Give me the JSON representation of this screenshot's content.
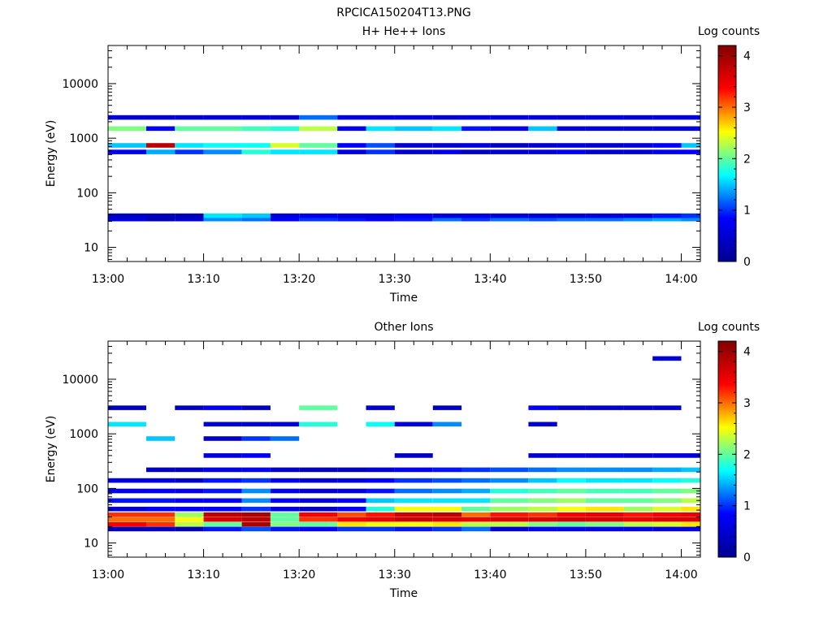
{
  "page_title": "RPCICA150204T13.PNG",
  "colormap": {
    "stops": [
      "#00008f",
      "#0000ff",
      "#00ffff",
      "#ffff00",
      "#ff0000",
      "#800000"
    ],
    "range": [
      0,
      4.2
    ]
  },
  "chart_data": [
    {
      "type": "heatmap",
      "title": "H+ He++ Ions",
      "xlabel": "Time",
      "ylabel": "Energy (eV)",
      "colorbar_label": "Log counts",
      "colorbar_ticks": [
        "0",
        "1",
        "2",
        "3",
        "4"
      ],
      "x_ticks": [
        "13:00",
        "13:10",
        "13:20",
        "13:30",
        "13:40",
        "13:50",
        "14:00"
      ],
      "y_ticks": [
        "10",
        "100",
        "1000",
        "10000"
      ],
      "xlim": [
        "13:00",
        "14:02"
      ],
      "ylim_eV": [
        5.5,
        50000
      ],
      "y_scale": "log",
      "time_bins": [
        "13:00",
        "13:04",
        "13:07",
        "13:10",
        "13:14",
        "13:17",
        "13:20",
        "13:24",
        "13:27",
        "13:30",
        "13:34",
        "13:37",
        "13:40",
        "13:44",
        "13:47",
        "13:50",
        "13:54",
        "13:57",
        "14:00"
      ],
      "cells": [
        {
          "energy_eV": 33,
          "values": [
            0.6,
            0.3,
            0.5,
            1.3,
            1.2,
            0.8,
            1.0,
            0.9,
            0.8,
            0.9,
            1.2,
            1.0,
            1.2,
            1.1,
            1.2,
            1.2,
            1.3,
            1.4,
            1.3
          ]
        },
        {
          "energy_eV": 38,
          "values": [
            0.4,
            0.3,
            0.3,
            1.6,
            1.5,
            0.6,
            0.7,
            0.6,
            0.5,
            0.7,
            0.6,
            0.6,
            0.6,
            0.5,
            0.5,
            0.6,
            0.6,
            0.9,
            1.0
          ]
        },
        {
          "energy_eV": 560,
          "values": [
            0.7,
            1.4,
            1.0,
            1.3,
            1.8,
            1.6,
            1.6,
            0.6,
            1.0,
            0.5,
            0.7,
            0.4,
            0.5,
            0.6,
            0.7,
            0.5,
            0.5,
            0.7,
            0.8
          ]
        },
        {
          "energy_eV": 740,
          "values": [
            1.5,
            3.8,
            1.6,
            1.7,
            1.7,
            2.4,
            2.0,
            0.8,
            1.1,
            0.5,
            0.5,
            0.6,
            0.4,
            0.5,
            0.6,
            0.5,
            0.6,
            0.8,
            1.5
          ]
        },
        {
          "energy_eV": 1500,
          "values": [
            2.1,
            0.8,
            2.0,
            2.0,
            1.9,
            1.8,
            2.3,
            0.7,
            1.6,
            1.5,
            1.6,
            0.9,
            0.7,
            1.5,
            0.6,
            0.6,
            0.6,
            0.6,
            0.6
          ]
        },
        {
          "energy_eV": 2400,
          "values": [
            0.5,
            0.5,
            0.5,
            0.6,
            0.6,
            0.5,
            1.2,
            0.6,
            0.6,
            0.6,
            0.5,
            0.6,
            0.6,
            0.6,
            0.5,
            0.6,
            0.5,
            0.6,
            0.6
          ]
        }
      ]
    },
    {
      "type": "heatmap",
      "title": "Other Ions",
      "xlabel": "Time",
      "ylabel": "Energy (eV)",
      "colorbar_label": "Log counts",
      "colorbar_ticks": [
        "0",
        "1",
        "2",
        "3",
        "4"
      ],
      "x_ticks": [
        "13:00",
        "13:10",
        "13:20",
        "13:30",
        "13:40",
        "13:50",
        "14:00"
      ],
      "y_ticks": [
        "10",
        "100",
        "1000",
        "10000"
      ],
      "xlim": [
        "13:00",
        "14:02"
      ],
      "ylim_eV": [
        5.5,
        50000
      ],
      "y_scale": "log",
      "time_bins": [
        "13:00",
        "13:04",
        "13:07",
        "13:10",
        "13:14",
        "13:17",
        "13:20",
        "13:24",
        "13:27",
        "13:30",
        "13:34",
        "13:37",
        "13:40",
        "13:44",
        "13:47",
        "13:50",
        "13:54",
        "13:57",
        "14:00"
      ],
      "cells": [
        {
          "energy_eV": 18,
          "values": [
            0.3,
            0.4,
            0.3,
            0.9,
            1.1,
            0.9,
            0.8,
            1.0,
            1.0,
            0.9,
            1.0,
            1.2,
            0.5,
            0.8,
            0.7,
            0.7,
            0.7,
            0.6,
            0.6
          ]
        },
        {
          "energy_eV": 22,
          "values": [
            3.4,
            3.2,
            2.3,
            2.0,
            3.9,
            2.1,
            2.0,
            2.6,
            2.5,
            2.5,
            2.6,
            2.3,
            2.3,
            2.1,
            2.0,
            2.1,
            2.3,
            2.4,
            2.6
          ]
        },
        {
          "energy_eV": 27,
          "values": [
            3.0,
            3.0,
            2.5,
            3.6,
            3.8,
            2.0,
            3.2,
            3.4,
            3.5,
            3.7,
            3.6,
            3.5,
            3.6,
            3.6,
            3.7,
            3.6,
            3.5,
            3.6,
            3.6
          ]
        },
        {
          "energy_eV": 33,
          "values": [
            3.2,
            3.2,
            2.2,
            3.8,
            3.9,
            2.0,
            3.4,
            3.1,
            3.3,
            3.7,
            3.8,
            3.0,
            3.3,
            3.2,
            3.4,
            3.5,
            3.3,
            3.4,
            3.5
          ]
        },
        {
          "energy_eV": 42,
          "values": [
            0.5,
            0.8,
            0.8,
            0.8,
            1.0,
            0.6,
            0.4,
            0.8,
            1.8,
            2.5,
            2.5,
            2.0,
            2.2,
            2.3,
            2.5,
            2.6,
            2.2,
            2.4,
            2.6
          ]
        },
        {
          "energy_eV": 60,
          "values": [
            0.9,
            0.9,
            0.8,
            0.8,
            1.3,
            0.8,
            0.6,
            0.8,
            1.5,
            1.6,
            1.6,
            1.6,
            2.0,
            2.1,
            2.2,
            2.0,
            2.0,
            2.1,
            2.3
          ]
        },
        {
          "energy_eV": 90,
          "values": [
            0.7,
            0.8,
            0.7,
            0.9,
            1.3,
            0.7,
            0.5,
            0.6,
            0.9,
            1.2,
            1.3,
            1.4,
            1.8,
            1.9,
            2.0,
            1.9,
            1.9,
            2.0,
            2.1
          ]
        },
        {
          "energy_eV": 140,
          "values": [
            0.6,
            0.6,
            0.4,
            0.9,
            1.0,
            0.7,
            0.5,
            0.6,
            0.8,
            1.0,
            1.1,
            1.2,
            1.3,
            1.5,
            1.7,
            1.6,
            1.6,
            1.7,
            1.8
          ]
        },
        {
          "energy_eV": 220,
          "values": [
            0.0,
            0.4,
            0.4,
            0.7,
            0.8,
            0.5,
            0.4,
            0.4,
            0.6,
            0.8,
            0.9,
            1.0,
            1.1,
            1.2,
            1.3,
            1.3,
            1.3,
            1.4,
            1.5
          ]
        },
        {
          "energy_eV": 400,
          "values": [
            0.0,
            0.0,
            0.0,
            0.6,
            0.8,
            0.0,
            0.0,
            0.0,
            0.0,
            0.4,
            0.0,
            0.0,
            0.0,
            0.5,
            0.6,
            0.6,
            0.5,
            0.6,
            0.6
          ]
        },
        {
          "energy_eV": 820,
          "values": [
            0.0,
            1.5,
            0.0,
            0.4,
            1.0,
            1.2,
            0.0,
            0.0,
            0.0,
            0.0,
            0.0,
            0.0,
            0.0,
            0.0,
            0.0,
            0.0,
            0.0,
            0.0,
            0.0
          ]
        },
        {
          "energy_eV": 1500,
          "values": [
            1.6,
            0.0,
            0.0,
            0.5,
            0.5,
            0.6,
            1.8,
            0.0,
            1.7,
            0.6,
            1.3,
            0.0,
            0.0,
            0.5,
            0.0,
            0.0,
            0.0,
            0.0,
            0.0
          ]
        },
        {
          "energy_eV": 3000,
          "values": [
            0.4,
            0.0,
            0.4,
            0.8,
            0.4,
            0.0,
            2.0,
            0.0,
            0.5,
            0.0,
            0.4,
            0.0,
            0.0,
            0.8,
            0.5,
            0.5,
            0.5,
            0.5,
            0.0
          ]
        },
        {
          "energy_eV": 24000,
          "values": [
            0.0,
            0.0,
            0.0,
            0.0,
            0.0,
            0.0,
            0.0,
            0.0,
            0.0,
            0.0,
            0.0,
            0.0,
            0.0,
            0.0,
            0.0,
            0.0,
            0.0,
            0.5,
            0.0
          ]
        }
      ]
    }
  ]
}
